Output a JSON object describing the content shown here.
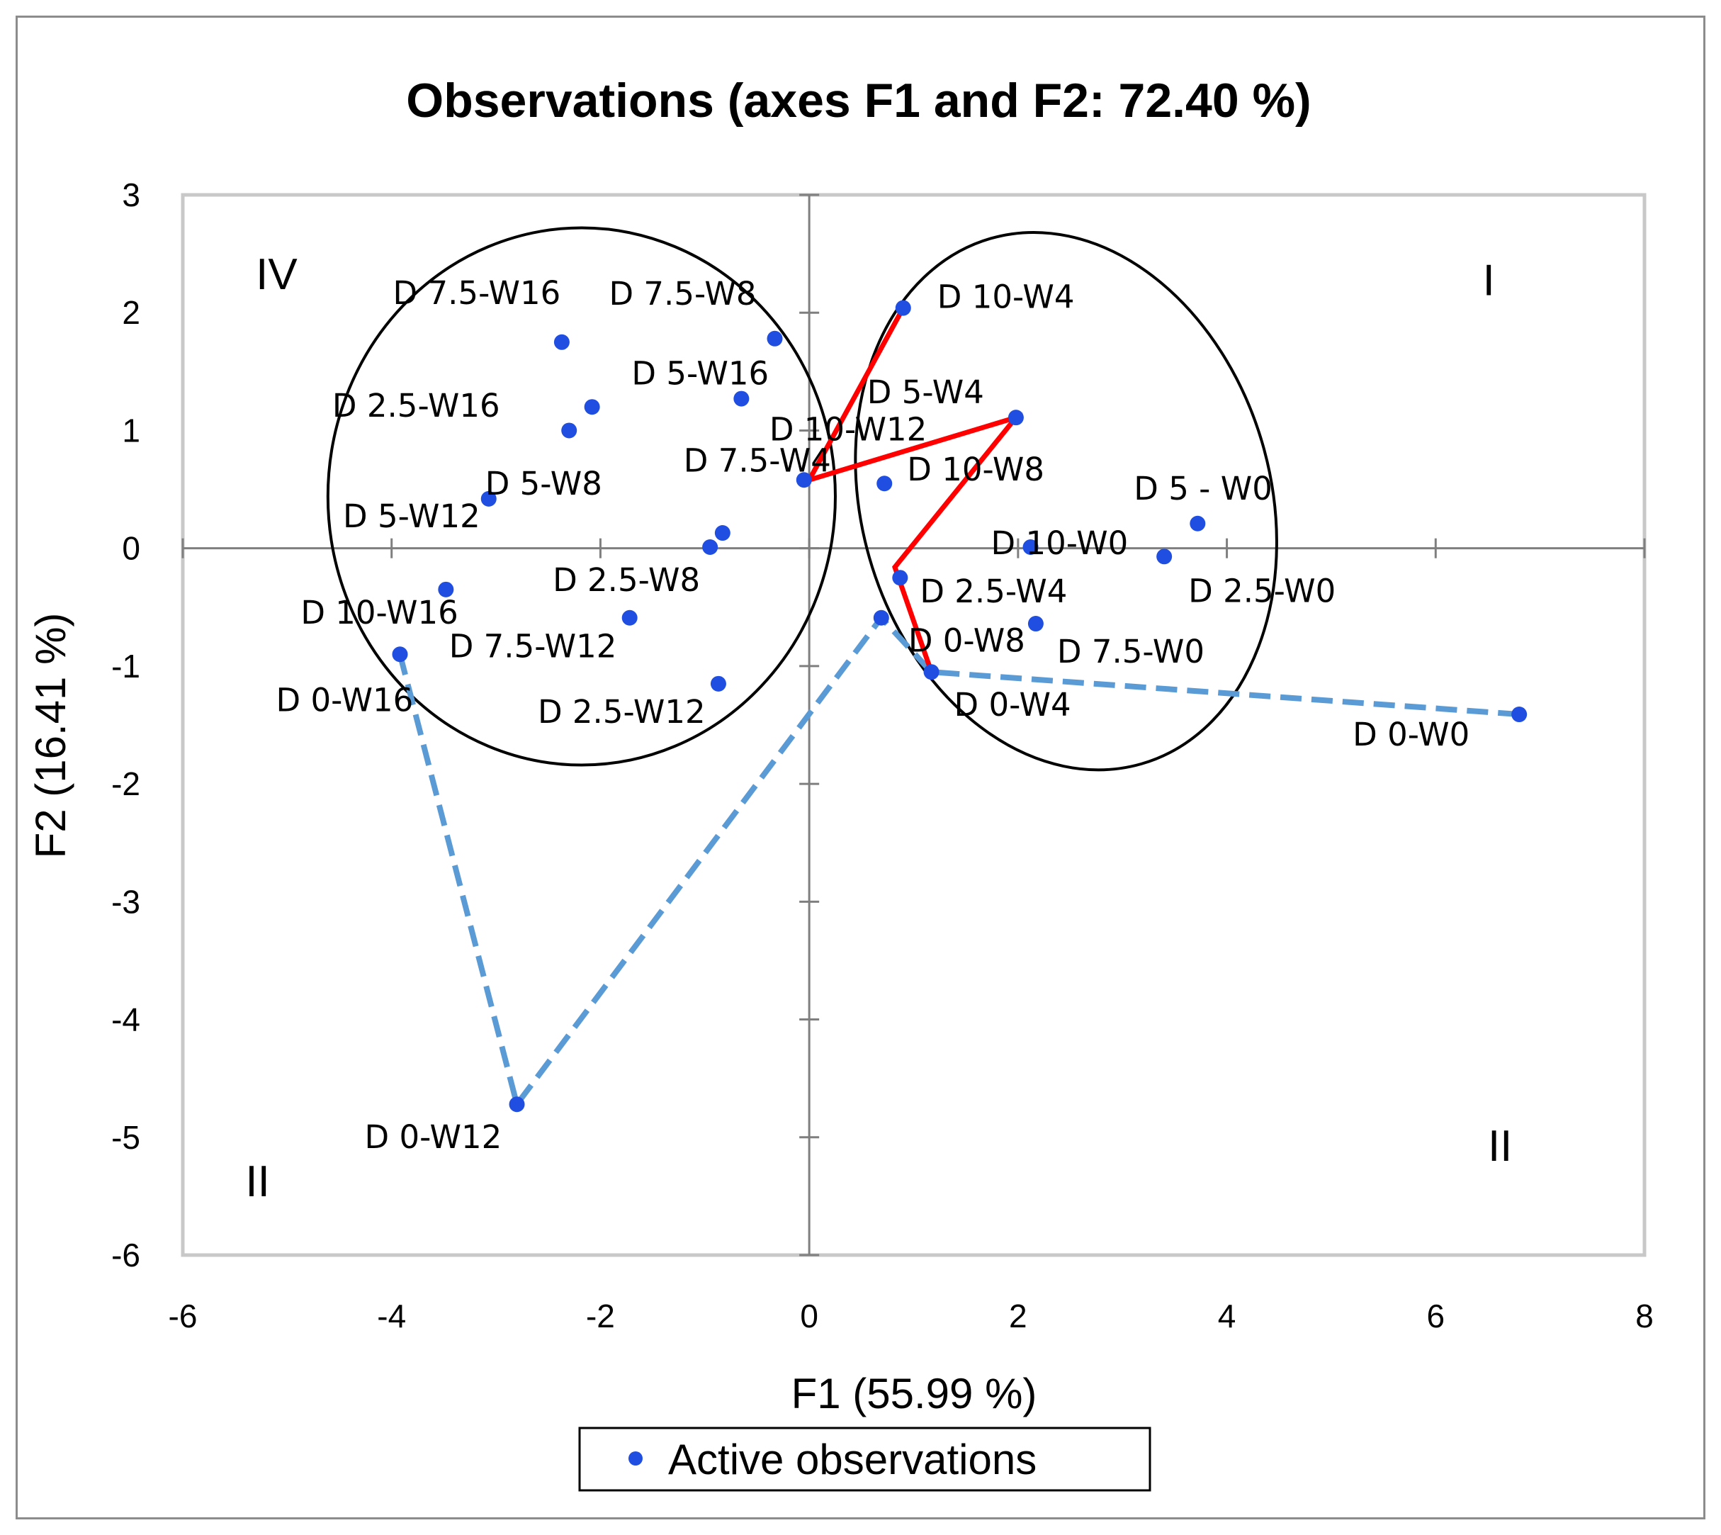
{
  "chart_data": {
    "type": "scatter",
    "title": "Observations (axes F1 and F2: 72.40 %)",
    "xlabel": "F1 (55.99 %)",
    "ylabel": "F2 (16.41 %)",
    "xlim": [
      -6,
      8
    ],
    "ylim": [
      -6,
      3
    ],
    "xticks": [
      "-6",
      "-4",
      "-2",
      "0",
      "2",
      "4",
      "6",
      "8"
    ],
    "yticks": [
      "3",
      "2",
      "1",
      "0",
      "-1",
      "-2",
      "-3",
      "-4",
      "-5",
      "-6"
    ],
    "legend": {
      "label": "Active observations",
      "position": "bottom-center"
    },
    "series": [
      {
        "name": "Active observations",
        "color": "#1f4ee0",
        "points": [
          {
            "label": "D 10-W4",
            "x": 0.9,
            "y": 2.04
          },
          {
            "label": "D 7.5-W8",
            "x": -0.33,
            "y": 1.78
          },
          {
            "label": "D 7.5-W16",
            "x": -2.37,
            "y": 1.75
          },
          {
            "label": "D 5-W16",
            "x": -0.65,
            "y": 1.27
          },
          {
            "label": "D 2.5-W16",
            "x": -2.08,
            "y": 1.2
          },
          {
            "label": "D 10-W12",
            "x": -2.3,
            "y": 1.0
          },
          {
            "label": "D 5-W4",
            "x": 1.98,
            "y": 1.11
          },
          {
            "label": "D 7.5-W4",
            "x": -0.05,
            "y": 0.58
          },
          {
            "label": "D 10-W8",
            "x": 0.72,
            "y": 0.55
          },
          {
            "label": "D 5-W12",
            "x": -3.07,
            "y": 0.42
          },
          {
            "label": "D 5-W8",
            "x": -0.83,
            "y": 0.13
          },
          {
            "label": "D 2.5-W8",
            "x": -0.95,
            "y": 0.01
          },
          {
            "label": "D 5 - W0",
            "x": 3.72,
            "y": 0.21
          },
          {
            "label": "D 10-W0",
            "x": 2.12,
            "y": 0.01
          },
          {
            "label": "D 2.5-W0",
            "x": 3.4,
            "y": -0.07
          },
          {
            "label": "D 2.5-W4",
            "x": 0.87,
            "y": -0.25
          },
          {
            "label": "D 10-W16",
            "x": -3.48,
            "y": -0.35
          },
          {
            "label": "D 7.5-W12",
            "x": -1.72,
            "y": -0.59
          },
          {
            "label": "D 0-W8",
            "x": 0.69,
            "y": -0.59
          },
          {
            "label": "D 7.5-W0",
            "x": 2.17,
            "y": -0.64
          },
          {
            "label": "D 0-W16",
            "x": -3.92,
            "y": -0.9
          },
          {
            "label": "D 0-W4",
            "x": 1.17,
            "y": -1.05
          },
          {
            "label": "D 2.5-W12",
            "x": -0.87,
            "y": -1.15
          },
          {
            "label": "D 0-W0",
            "x": 6.8,
            "y": -1.41
          },
          {
            "label": "D 0-W12",
            "x": -2.8,
            "y": -4.72
          }
        ]
      }
    ],
    "annotations": {
      "quadrant_labels": [
        {
          "text": "IV",
          "x": -5.3,
          "y": 2.2
        },
        {
          "text": "I",
          "x": 6.45,
          "y": 2.15
        },
        {
          "text": "II",
          "x": -5.4,
          "y": -5.5
        },
        {
          "text": "II",
          "x": 6.5,
          "y": -5.2
        }
      ],
      "ellipses": [
        {
          "cx": -2.18,
          "cy": 0.44,
          "rx": 2.43,
          "ry": 2.28,
          "color": "#000000"
        },
        {
          "cx": 2.46,
          "cy": 0.4,
          "rx": 1.96,
          "ry": 2.32,
          "rotate_deg": -16,
          "color": "#000000"
        }
      ],
      "red_path": {
        "color": "#ff0000",
        "points": [
          [
            0.9,
            2.04
          ],
          [
            0.0,
            0.58
          ],
          [
            1.98,
            1.11
          ],
          [
            0.82,
            -0.16
          ],
          [
            1.17,
            -1.05
          ]
        ]
      },
      "dashed_path": {
        "color": "#5b9bd5",
        "points": [
          [
            6.8,
            -1.41
          ],
          [
            1.17,
            -1.05
          ],
          [
            0.69,
            -0.59
          ],
          [
            -2.8,
            -4.72
          ],
          [
            -3.92,
            -0.9
          ]
        ]
      }
    }
  }
}
